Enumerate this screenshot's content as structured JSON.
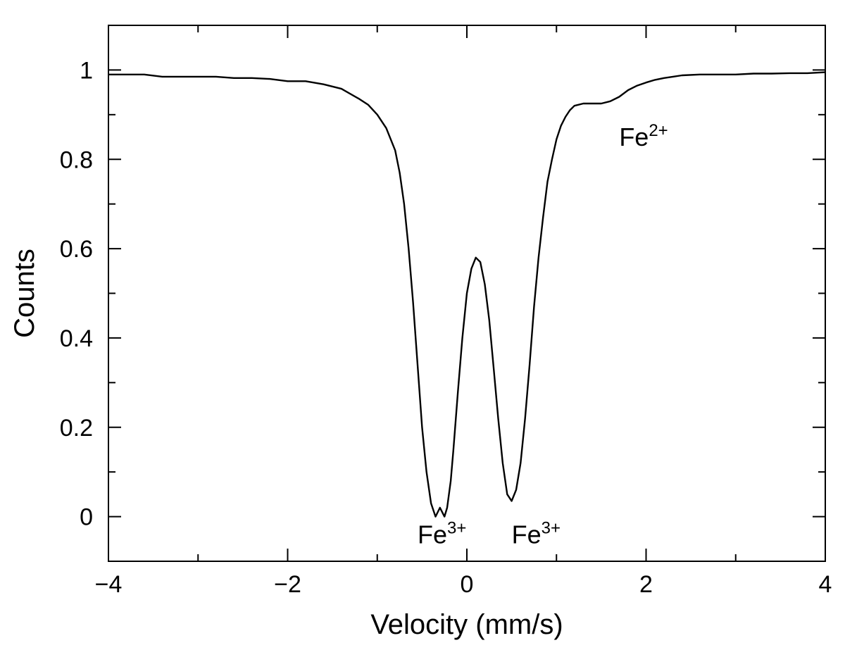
{
  "chart_data": {
    "type": "line",
    "title": "",
    "xlabel": "Velocity (mm/s)",
    "ylabel": "Counts",
    "xlim": [
      -4,
      4
    ],
    "ylim": [
      -0.1,
      1.1
    ],
    "grid": false,
    "legend": "none",
    "x_ticks": [
      -4,
      -2,
      0,
      2,
      4
    ],
    "x_tick_labels": [
      "−4",
      "−2",
      "0",
      "2",
      "4"
    ],
    "x_minor_ticks": [
      -3,
      -1,
      1,
      3
    ],
    "y_ticks": [
      0,
      0.2,
      0.4,
      0.6,
      0.8,
      1
    ],
    "y_tick_labels": [
      "0",
      "0.2",
      "0.4",
      "0.6",
      "0.8",
      "1"
    ],
    "y_minor_ticks": [
      0.1,
      0.3,
      0.5,
      0.7,
      0.9
    ],
    "line_color": "#000000",
    "series": [
      {
        "x": [
          -4.0,
          -3.8,
          -3.6,
          -3.4,
          -3.2,
          -3.0,
          -2.8,
          -2.6,
          -2.4,
          -2.2,
          -2.0,
          -1.8,
          -1.6,
          -1.4,
          -1.2,
          -1.1,
          -1.0,
          -0.9,
          -0.8,
          -0.75,
          -0.7,
          -0.65,
          -0.6,
          -0.55,
          -0.5,
          -0.45,
          -0.4,
          -0.35,
          -0.3,
          -0.25,
          -0.22,
          -0.18,
          -0.15,
          -0.1,
          -0.05,
          0.0,
          0.05,
          0.1,
          0.15,
          0.2,
          0.25,
          0.3,
          0.35,
          0.4,
          0.45,
          0.5,
          0.55,
          0.6,
          0.65,
          0.7,
          0.75,
          0.8,
          0.85,
          0.9,
          0.95,
          1.0,
          1.05,
          1.1,
          1.15,
          1.2,
          1.3,
          1.4,
          1.5,
          1.6,
          1.7,
          1.8,
          1.9,
          2.0,
          2.1,
          2.2,
          2.3,
          2.4,
          2.6,
          2.8,
          3.0,
          3.2,
          3.4,
          3.6,
          3.8,
          4.0
        ],
        "y": [
          0.99,
          0.99,
          0.99,
          0.985,
          0.985,
          0.985,
          0.985,
          0.982,
          0.982,
          0.98,
          0.975,
          0.975,
          0.968,
          0.958,
          0.935,
          0.922,
          0.9,
          0.87,
          0.82,
          0.77,
          0.7,
          0.6,
          0.48,
          0.34,
          0.2,
          0.1,
          0.03,
          0.0,
          0.02,
          0.0,
          0.02,
          0.08,
          0.15,
          0.28,
          0.4,
          0.5,
          0.555,
          0.58,
          0.57,
          0.52,
          0.44,
          0.33,
          0.22,
          0.12,
          0.05,
          0.035,
          0.06,
          0.12,
          0.22,
          0.34,
          0.47,
          0.58,
          0.67,
          0.75,
          0.8,
          0.845,
          0.875,
          0.895,
          0.91,
          0.92,
          0.925,
          0.925,
          0.925,
          0.93,
          0.94,
          0.955,
          0.965,
          0.972,
          0.978,
          0.982,
          0.985,
          0.988,
          0.99,
          0.99,
          0.99,
          0.992,
          0.992,
          0.993,
          0.993,
          0.995
        ]
      }
    ],
    "annotations": [
      {
        "base": "Fe",
        "sup": "3+",
        "x": -0.55,
        "y": -0.06
      },
      {
        "base": "Fe",
        "sup": "3+",
        "x": 0.5,
        "y": -0.06
      },
      {
        "base": "Fe",
        "sup": "2+",
        "x": 1.7,
        "y": 0.83
      }
    ]
  }
}
